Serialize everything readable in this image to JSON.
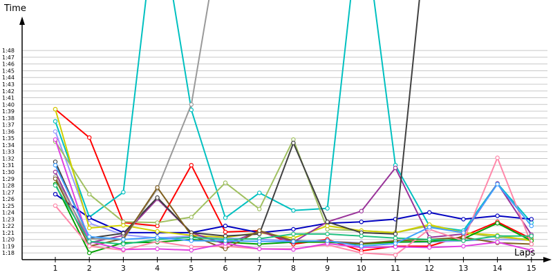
{
  "chart_data": {
    "type": "line",
    "ylabel": "Time",
    "xlabel": "Laps",
    "x": [
      1,
      2,
      3,
      4,
      5,
      6,
      7,
      8,
      9,
      10,
      11,
      12,
      13,
      14,
      15
    ],
    "ylim": [
      "1:17",
      "1:49"
    ],
    "y_ticks": [
      "1:18",
      "1:19",
      "1:20",
      "1:21",
      "1:22",
      "1:23",
      "1:24",
      "1:25",
      "1:26",
      "1:27",
      "1:28",
      "1:29",
      "1:30",
      "1:31",
      "1:32",
      "1:33",
      "1:34",
      "1:35",
      "1:36",
      "1:37",
      "1:38",
      "1:39",
      "1:40",
      "1:41",
      "1:42",
      "1:43",
      "1:44",
      "1:45",
      "1:46",
      "1:47",
      "1:48"
    ],
    "grid": true,
    "legend": "none",
    "series": [
      {
        "color": "#ff0000",
        "values": [
          "1:39.3",
          "1:35.1",
          "1:22.5",
          "1:22.0",
          "1:31.0",
          "1:21.1",
          "1:21.3",
          "1:19.3",
          "1:20.0",
          "1:18.3",
          "1:19.0",
          "1:19.0",
          "1:20.5",
          "1:22.6",
          "1:20.1"
        ]
      },
      {
        "color": "#00c0c0",
        "values": [
          "1:37.5",
          "1:23.3",
          "1:27.0",
          "2:10.0",
          "1:39.2",
          "1:23.2",
          "1:26.9",
          "1:24.3",
          "1:24.6",
          "2:10.0",
          "1:31.0",
          "1:22.0",
          "1:21.3",
          "1:28.3",
          "1:22.5"
        ]
      },
      {
        "color": "#9999ff",
        "values": [
          "1:36.0",
          "1:22.4",
          "1:20.7",
          "1:20.2",
          "1:20.5",
          "1:20.2",
          "1:20.0",
          "1:19.8",
          "1:19.7",
          "1:19.5",
          "1:19.6",
          "1:19.6",
          "1:19.8",
          "1:20.0",
          "1:19.9"
        ]
      },
      {
        "color": "#0000c0",
        "values": [
          "1:26.7",
          "1:23.2",
          "1:21.0",
          "1:21.0",
          "1:21.0",
          "1:22.0",
          "1:21.0",
          "1:21.5",
          "1:22.4",
          "1:22.6",
          "1:23.0",
          "1:24.0",
          "1:23.0",
          "1:23.5",
          "1:23.0"
        ]
      },
      {
        "color": "#a0c060",
        "values": [
          "1:34.5",
          "1:26.7",
          "1:22.6",
          "1:22.5",
          "1:23.3",
          "1:28.4",
          "1:24.5",
          "1:34.8",
          "1:21.5",
          "1:21.3",
          "1:21.0",
          "1:22.0",
          "1:21.0",
          "1:20.3",
          "1:20.0"
        ]
      },
      {
        "color": "#d0d000",
        "values": [
          "1:39.3",
          "1:21.7",
          "1:22.1",
          "1:21.2",
          "1:20.6",
          "1:20.3",
          "1:21.0",
          "1:20.2",
          "1:22.0",
          "1:21.3",
          "1:21.0",
          "1:22.2",
          "1:21.0",
          "1:20.6",
          "1:19.8"
        ]
      },
      {
        "color": "#00a000",
        "values": [
          "1:28.2",
          "1:18.0",
          "1:19.5",
          "1:19.6",
          "1:20.0",
          "1:19.6",
          "1:19.3",
          "1:19.6",
          "1:19.6",
          "1:19.3",
          "1:19.6",
          "1:19.7",
          "1:20.1",
          "1:22.4",
          "1:19.8"
        ]
      },
      {
        "color": "#993399",
        "values": [
          "1:30.0",
          "1:19.5",
          "1:20.6",
          "1:26.0",
          "1:21.0",
          "1:19.3",
          "1:21.2",
          "1:19.6",
          "1:22.6",
          "1:24.2",
          "1:30.6",
          "1:20.3",
          "1:20.8",
          "1:28.3",
          "1:20.7"
        ]
      },
      {
        "color": "#404040",
        "values": [
          "1:31.5",
          "1:20.2",
          "1:20.9",
          "1:26.2",
          "1:21.0",
          "1:20.5",
          "1:20.8",
          "1:34.3",
          "1:22.6",
          "1:21.0",
          "1:20.8",
          "2:10.0",
          "",
          "",
          ""
        ]
      },
      {
        "color": "#999999",
        "values": [
          "1:29.3",
          "1:20.1",
          "1:20.0",
          "1:27.5",
          "1:40.0",
          "2:10.0",
          "",
          "",
          "",
          "",
          "",
          "",
          "",
          "",
          ""
        ]
      },
      {
        "color": "#806020",
        "values": [
          "1:29.0",
          "1:19.0",
          "1:20.1",
          "1:27.7",
          "1:20.6",
          "1:18.6",
          "1:21.3",
          "1:19.8",
          "1:19.7",
          "1:19.4",
          "1:19.8",
          "1:20.0",
          "1:20.3",
          "1:19.5",
          "1:19.3"
        ]
      },
      {
        "color": "#ff88aa",
        "values": [
          "1:25.0",
          "1:19.0",
          "1:18.4",
          "1:19.7",
          "1:18.9",
          "1:19.0",
          "1:18.6",
          "1:18.6",
          "1:19.2",
          "1:18.0",
          "1:17.7",
          "1:21.5",
          "1:19.8",
          "1:32.1",
          "1:19.3"
        ]
      },
      {
        "color": "#e040e0",
        "values": [
          "1:34.8",
          "1:19.7",
          "1:18.5",
          "1:18.6",
          "1:18.4",
          "1:19.4",
          "1:18.6",
          "1:18.5",
          "1:19.4",
          "1:18.8",
          "1:18.9",
          "1:18.8",
          "1:19.0",
          "1:19.6",
          "1:18.4"
        ]
      },
      {
        "color": "#20c080",
        "values": [
          "1:28.0",
          "1:19.7",
          "1:19.3",
          "1:20.0",
          "1:20.3",
          "1:20.0",
          "1:20.1",
          "1:20.8",
          "1:20.8",
          "1:20.5",
          "1:20.2",
          "1:20.0",
          "1:19.8",
          "1:20.5",
          "1:20.5"
        ]
      },
      {
        "color": "#40a0ff",
        "values": [
          "1:31.0",
          "1:20.4",
          "1:20.0",
          "1:20.3",
          "1:19.8",
          "1:19.8",
          "1:19.7",
          "1:19.7",
          "1:19.8",
          "1:19.0",
          "1:19.4",
          "1:21.8",
          "1:21.0",
          "1:28.2",
          "1:22.0"
        ]
      }
    ]
  }
}
